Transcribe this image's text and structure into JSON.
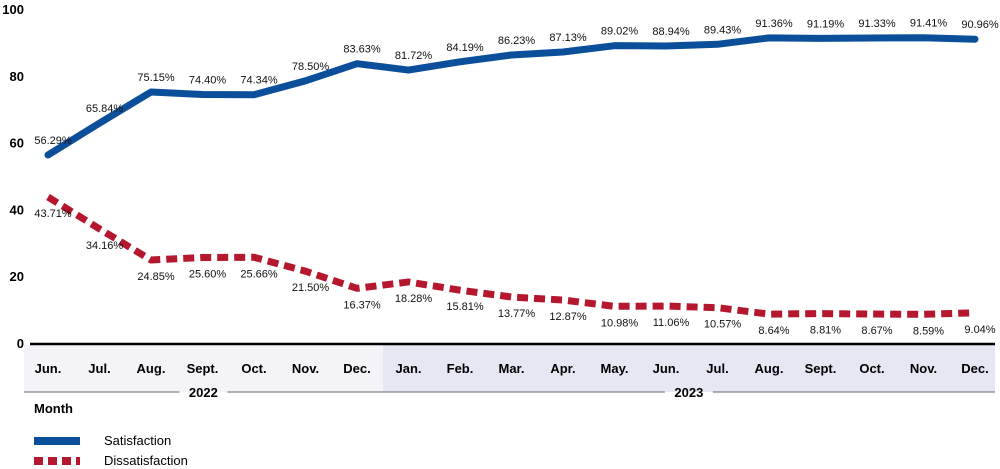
{
  "chart_data": {
    "type": "line",
    "categories": [
      "Jun.",
      "Jul.",
      "Aug.",
      "Sept.",
      "Oct.",
      "Nov.",
      "Dec.",
      "Jan.",
      "Feb.",
      "Mar.",
      "Apr.",
      "May.",
      "Jun.",
      "Jul.",
      "Aug.",
      "Sept.",
      "Oct.",
      "Nov.",
      "Dec."
    ],
    "year_groups": [
      {
        "label": "2022",
        "start": 0,
        "end": 6
      },
      {
        "label": "2023",
        "start": 7,
        "end": 18
      }
    ],
    "series": [
      {
        "name": "Satisfaction",
        "color": "#0b4f9b",
        "style": "solid",
        "values": [
          56.29,
          65.84,
          75.15,
          74.4,
          74.34,
          78.5,
          83.63,
          81.72,
          84.19,
          86.23,
          87.13,
          89.02,
          88.94,
          89.43,
          91.36,
          91.19,
          91.33,
          91.41,
          90.96
        ],
        "labels": [
          "56.29%",
          "65.84%",
          "75.15%",
          "74.40%",
          "74.34%",
          "78.50%",
          "83.63%",
          "81.72%",
          "84.19%",
          "86.23%",
          "87.13%",
          "89.02%",
          "88.94%",
          "89.43%",
          "91.36%",
          "91.19%",
          "91.33%",
          "91.41%",
          "90.96%"
        ]
      },
      {
        "name": "Dissatisfaction",
        "color": "#b5172f",
        "style": "dashed",
        "values": [
          43.71,
          34.16,
          24.85,
          25.6,
          25.66,
          21.5,
          16.37,
          18.28,
          15.81,
          13.77,
          12.87,
          10.98,
          11.06,
          10.57,
          8.64,
          8.81,
          8.67,
          8.59,
          9.04
        ],
        "labels": [
          "43.71%",
          "34.16%",
          "24.85%",
          "25.60%",
          "25.66%",
          "21.50%",
          "16.37%",
          "18.28%",
          "15.81%",
          "13.77%",
          "12.87%",
          "10.98%",
          "11.06%",
          "10.57%",
          "8.64%",
          "8.81%",
          "8.67%",
          "8.59%",
          "9.04%"
        ]
      }
    ],
    "ylim": [
      0,
      100
    ],
    "yticks": [
      "0",
      "20",
      "40",
      "60",
      "80",
      "100"
    ],
    "xlabel": "Month",
    "ylabel": "",
    "grid": false,
    "legend_position": "bottom-left",
    "year_band_colors": {
      "2022": "#f4f4f8",
      "2023": "#e7e7f4"
    }
  }
}
